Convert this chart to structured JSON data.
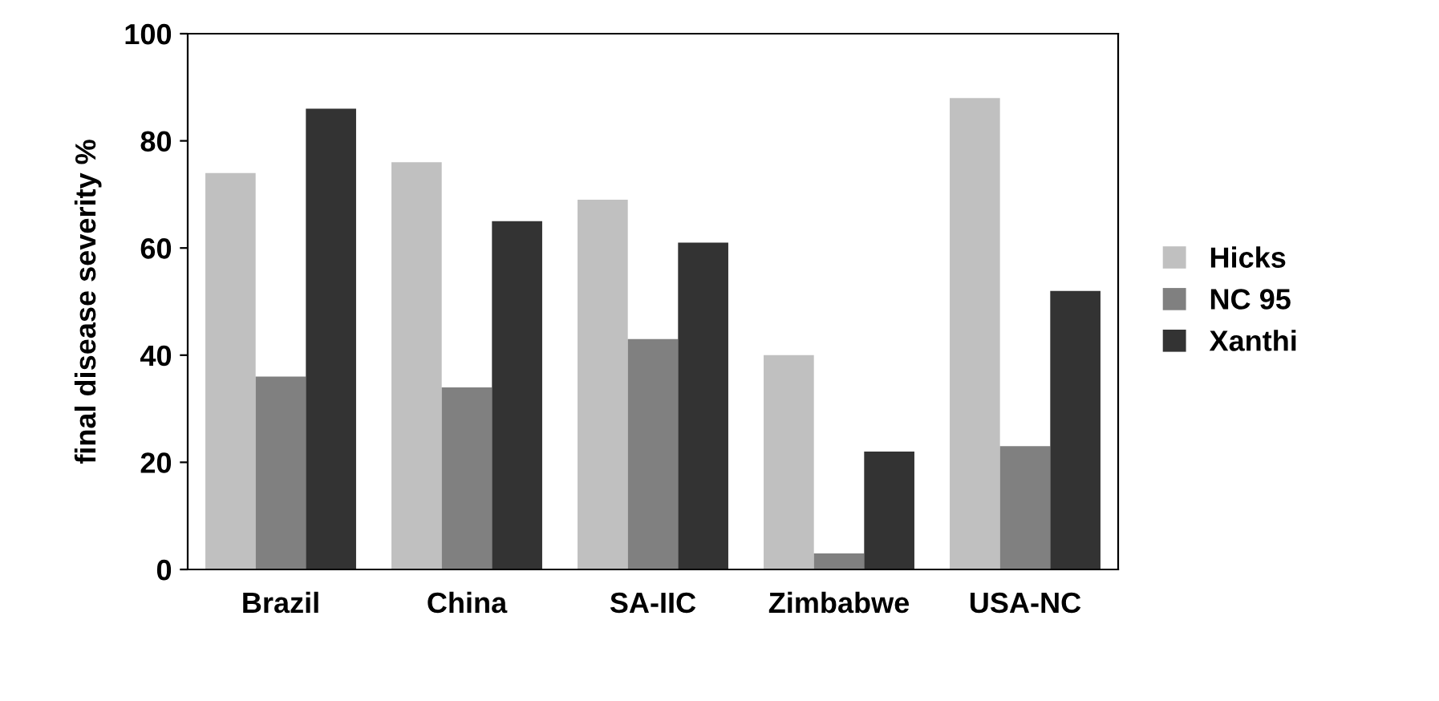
{
  "chart_data": {
    "type": "bar",
    "ylabel": "final disease severity %",
    "categories": [
      "Brazil",
      "China",
      "SA-IIC",
      "Zimbabwe",
      "USA-NC"
    ],
    "series": [
      {
        "name": "Hicks",
        "color": "#c0c0c0",
        "values": [
          74,
          76,
          69,
          40,
          88
        ]
      },
      {
        "name": "NC 95",
        "color": "#808080",
        "values": [
          36,
          34,
          43,
          3,
          23
        ]
      },
      {
        "name": "Xanthi",
        "color": "#333333",
        "values": [
          86,
          65,
          61,
          22,
          52
        ]
      }
    ],
    "ylim": [
      0,
      100
    ],
    "yticks": [
      0,
      20,
      40,
      60,
      80,
      100
    ],
    "grid": false,
    "legend": "right"
  }
}
